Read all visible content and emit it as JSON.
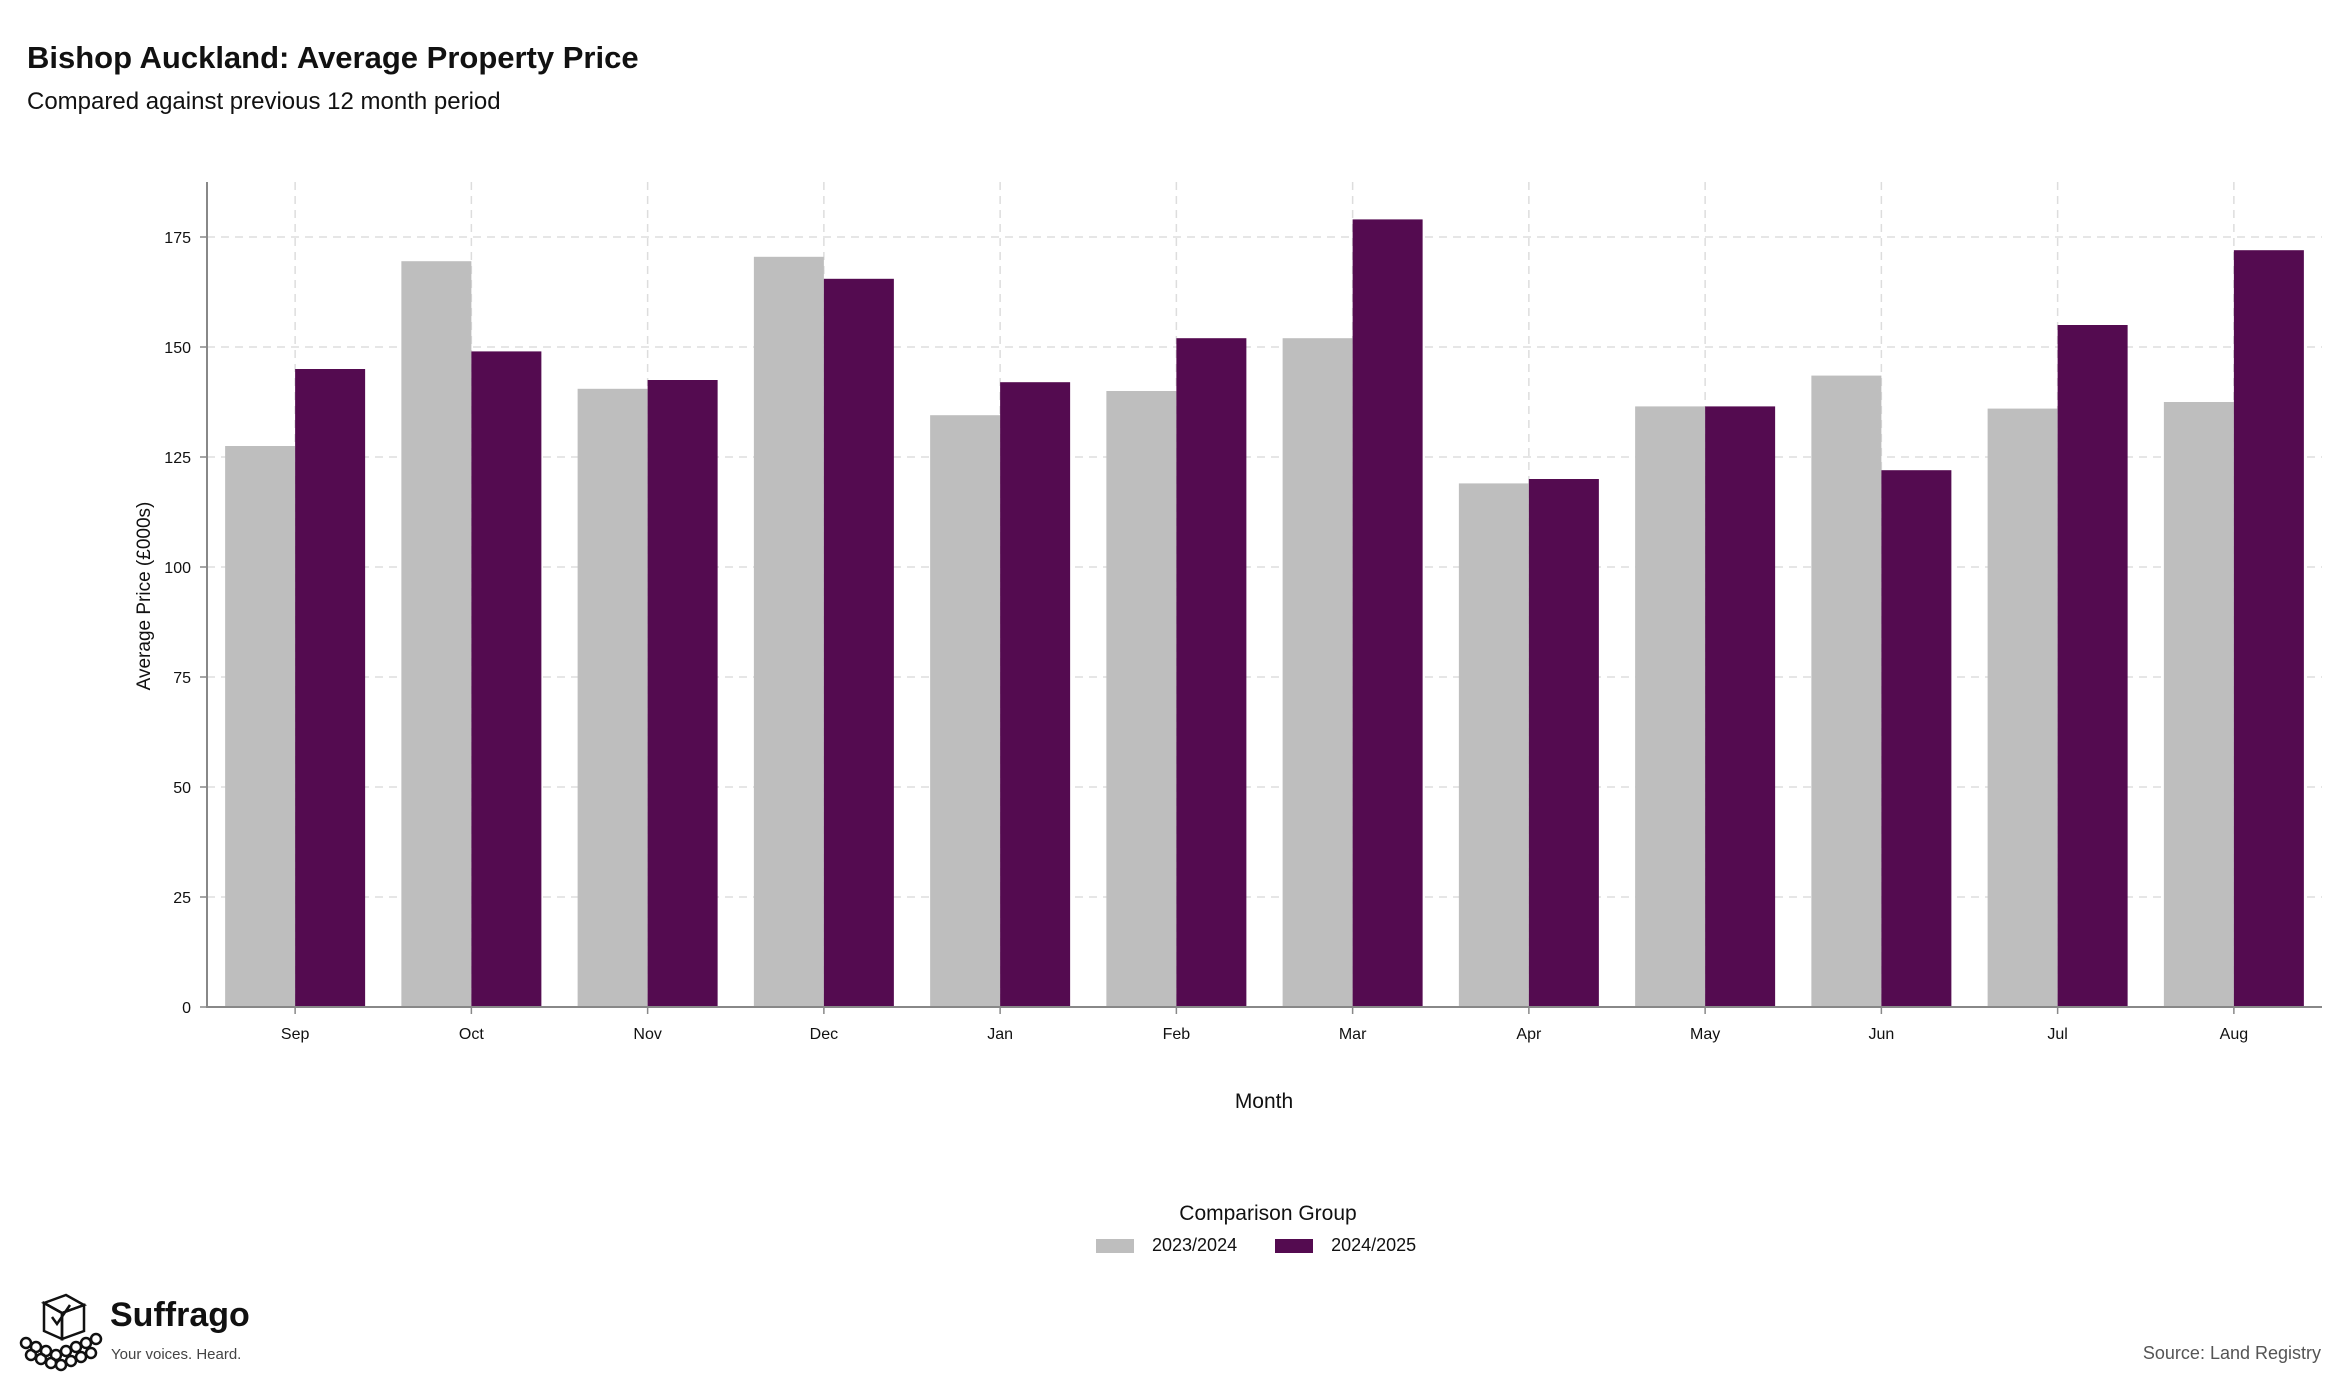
{
  "header": {
    "title": "Bishop Auckland: Average Property Price",
    "subtitle": "Compared against previous 12 month period"
  },
  "legend": {
    "title": "Comparison Group",
    "items": [
      {
        "label": "2023/2024",
        "color": "#bebebe"
      },
      {
        "label": "2024/2025",
        "color": "#540b50"
      }
    ]
  },
  "footer": {
    "brand": "Suffrago",
    "tagline": "Your voices. Heard.",
    "source": "Source: Land Registry",
    "logo_icon": "ballot-box-crowd-icon"
  },
  "chart_data": {
    "type": "bar",
    "categories": [
      "Sep",
      "Oct",
      "Nov",
      "Dec",
      "Jan",
      "Feb",
      "Mar",
      "Apr",
      "May",
      "Jun",
      "Jul",
      "Aug"
    ],
    "series": [
      {
        "name": "2023/2024",
        "color": "#bebebe",
        "values": [
          127.5,
          169.5,
          140.5,
          170.5,
          134.5,
          140,
          152,
          119,
          136.5,
          143.5,
          136,
          137.5
        ]
      },
      {
        "name": "2024/2025",
        "color": "#540b50",
        "values": [
          145,
          149,
          142.5,
          165.5,
          142,
          152,
          179,
          120,
          136.5,
          122,
          155,
          172
        ]
      }
    ],
    "xlabel": "Month",
    "ylabel": "Average Price (£000s)",
    "ylim": [
      0,
      187.5
    ],
    "yticks": [
      0,
      25,
      50,
      75,
      100,
      125,
      150,
      175
    ],
    "grid": true,
    "legend_position": "bottom"
  }
}
